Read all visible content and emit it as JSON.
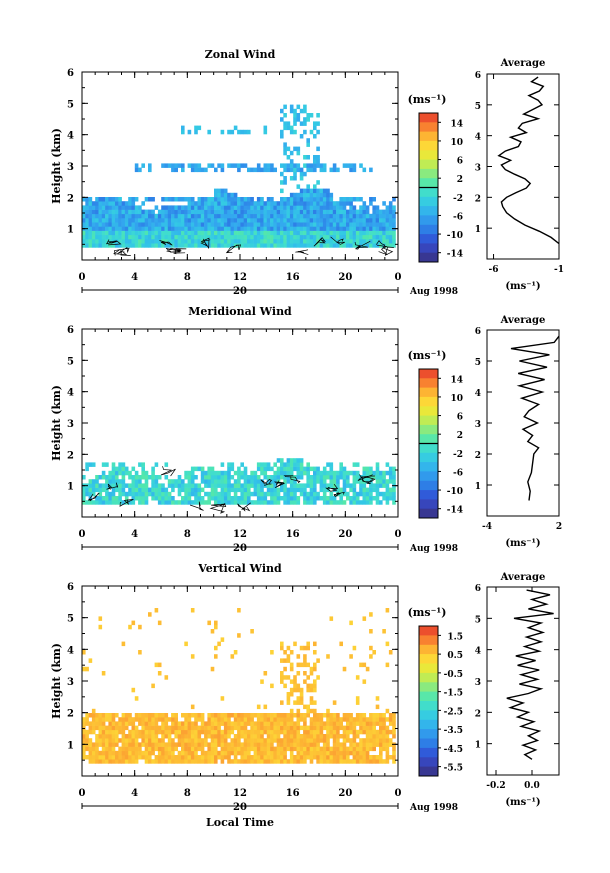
{
  "chart_data": [
    {
      "type": "heatmap",
      "title": "Zonal Wind",
      "xlabel": "",
      "ylabel": "Height (km)",
      "xlim": [
        0,
        24
      ],
      "ylim": [
        0,
        6
      ],
      "x_ticks": [
        "0",
        "4",
        "8",
        "12",
        "16",
        "20",
        "0"
      ],
      "y_ticks": [
        "1",
        "2",
        "3",
        "4",
        "5",
        "6"
      ],
      "date_label": "20",
      "date_suffix": "Aug 1998",
      "colorbar": {
        "unit": "(ms⁻¹)",
        "range": [
          -16,
          16
        ],
        "tick_labels": [
          "14",
          "10",
          "6",
          "2",
          "-2",
          "-6",
          "-10",
          "-14"
        ],
        "zero_line": true
      },
      "data_extent": {
        "height_top_main_km": 1.8,
        "height_top_sparse_km": 5.1
      },
      "value_range_observed": [
        -12,
        0
      ],
      "profile": {
        "title": "Average",
        "xlabel": "(ms⁻¹)",
        "xlim": [
          -6.5,
          -1
        ],
        "x_ticks": [
          "-6",
          "-1"
        ],
        "y_ticks": [
          "1",
          "2",
          "3",
          "4",
          "5",
          "6"
        ],
        "ylim": [
          0,
          6
        ],
        "points": [
          [
            -1.0,
            0.5
          ],
          [
            -1.6,
            0.7
          ],
          [
            -2.5,
            0.9
          ],
          [
            -3.6,
            1.1
          ],
          [
            -4.4,
            1.3
          ],
          [
            -5.0,
            1.5
          ],
          [
            -5.3,
            1.7
          ],
          [
            -5.4,
            1.85
          ],
          [
            -5.0,
            2.0
          ],
          [
            -4.3,
            2.15
          ],
          [
            -3.5,
            2.3
          ],
          [
            -3.2,
            2.45
          ],
          [
            -3.6,
            2.6
          ],
          [
            -4.4,
            2.75
          ],
          [
            -5.1,
            2.9
          ],
          [
            -5.4,
            3.05
          ],
          [
            -4.7,
            3.2
          ],
          [
            -5.6,
            3.35
          ],
          [
            -5.1,
            3.5
          ],
          [
            -4.1,
            3.65
          ],
          [
            -3.9,
            3.8
          ],
          [
            -4.7,
            3.95
          ],
          [
            -3.5,
            4.1
          ],
          [
            -4.1,
            4.25
          ],
          [
            -3.8,
            4.4
          ],
          [
            -2.6,
            4.55
          ],
          [
            -3.7,
            4.7
          ],
          [
            -3.0,
            4.85
          ],
          [
            -2.3,
            5.0
          ],
          [
            -2.6,
            5.15
          ],
          [
            -3.3,
            5.3
          ],
          [
            -2.5,
            5.45
          ],
          [
            -2.2,
            5.6
          ],
          [
            -3.1,
            5.75
          ],
          [
            -2.6,
            5.9
          ]
        ]
      }
    },
    {
      "type": "heatmap",
      "title": "Meridional Wind",
      "xlabel": "",
      "ylabel": "Height (km)",
      "xlim": [
        0,
        24
      ],
      "ylim": [
        0,
        6
      ],
      "x_ticks": [
        "0",
        "4",
        "8",
        "12",
        "16",
        "20",
        "0"
      ],
      "y_ticks": [
        "1",
        "2",
        "3",
        "4",
        "5",
        "6"
      ],
      "date_label": "20",
      "date_suffix": "Aug 1998",
      "colorbar": {
        "unit": "(ms⁻¹)",
        "range": [
          -16,
          16
        ],
        "tick_labels": [
          "14",
          "10",
          "6",
          "2",
          "-2",
          "-6",
          "-10",
          "-14"
        ],
        "zero_line": true
      },
      "data_extent": {
        "height_top_main_km": 1.7
      },
      "value_range_observed": [
        -6,
        2
      ],
      "profile": {
        "title": "Average",
        "xlabel": "(ms⁻¹)",
        "xlim": [
          -4,
          2
        ],
        "x_ticks": [
          "-4",
          "2"
        ],
        "y_ticks": [
          "1",
          "2",
          "3",
          "4",
          "5",
          "6"
        ],
        "ylim": [
          0,
          6
        ],
        "points": [
          [
            -0.5,
            0.5
          ],
          [
            -0.4,
            0.8
          ],
          [
            -0.6,
            1.1
          ],
          [
            -0.3,
            1.4
          ],
          [
            -0.2,
            1.7
          ],
          [
            -0.1,
            2.0
          ],
          [
            0.3,
            2.2
          ],
          [
            -0.6,
            2.4
          ],
          [
            -0.2,
            2.6
          ],
          [
            -1.0,
            2.8
          ],
          [
            0.2,
            3.0
          ],
          [
            -0.9,
            3.2
          ],
          [
            -0.5,
            3.4
          ],
          [
            0.3,
            3.6
          ],
          [
            -1.1,
            3.8
          ],
          [
            0.6,
            4.0
          ],
          [
            -1.3,
            4.2
          ],
          [
            0.8,
            4.4
          ],
          [
            -1.4,
            4.6
          ],
          [
            1.0,
            4.8
          ],
          [
            -1.3,
            5.0
          ],
          [
            1.2,
            5.2
          ],
          [
            -2.0,
            5.4
          ],
          [
            1.6,
            5.6
          ],
          [
            2.0,
            5.8
          ]
        ]
      }
    },
    {
      "type": "heatmap",
      "title": "Vertical Wind",
      "xlabel": "Local Time",
      "ylabel": "Height (km)",
      "xlim": [
        0,
        24
      ],
      "ylim": [
        0,
        6
      ],
      "x_ticks": [
        "0",
        "4",
        "8",
        "12",
        "16",
        "20",
        "0"
      ],
      "y_ticks": [
        "1",
        "2",
        "3",
        "4",
        "5",
        "6"
      ],
      "date_label": "20",
      "date_suffix": "Aug 1998",
      "colorbar": {
        "unit": "(ms⁻¹)",
        "range": [
          -6.5,
          2.0
        ],
        "tick_labels": [
          "1.5",
          "0.5",
          "-0.5",
          "-1.5",
          "-2.5",
          "-3.5",
          "-4.5",
          "-5.5"
        ],
        "zero_line": false
      },
      "data_extent": {
        "height_top_main_km": 2.0,
        "height_top_sparse_km": 5.4
      },
      "value_range_observed": [
        -0.6,
        1.5
      ],
      "profile": {
        "title": "Average",
        "xlabel": "(ms⁻¹)",
        "xlim": [
          -0.25,
          0.15
        ],
        "x_ticks": [
          "-0.2",
          "0.0"
        ],
        "y_ticks": [
          "1",
          "2",
          "3",
          "4",
          "5",
          "6"
        ],
        "ylim": [
          0,
          6
        ],
        "points": [
          [
            0.0,
            0.5
          ],
          [
            -0.04,
            0.65
          ],
          [
            0.02,
            0.8
          ],
          [
            -0.05,
            0.95
          ],
          [
            0.03,
            1.1
          ],
          [
            -0.02,
            1.25
          ],
          [
            0.04,
            1.4
          ],
          [
            -0.06,
            1.55
          ],
          [
            0.01,
            1.7
          ],
          [
            -0.08,
            1.85
          ],
          [
            -0.02,
            2.0
          ],
          [
            -0.12,
            2.15
          ],
          [
            -0.05,
            2.3
          ],
          [
            -0.14,
            2.45
          ],
          [
            -0.02,
            2.6
          ],
          [
            0.05,
            2.75
          ],
          [
            -0.07,
            2.9
          ],
          [
            0.03,
            3.05
          ],
          [
            -0.06,
            3.2
          ],
          [
            0.04,
            3.35
          ],
          [
            -0.08,
            3.5
          ],
          [
            0.02,
            3.65
          ],
          [
            -0.09,
            3.8
          ],
          [
            0.04,
            3.95
          ],
          [
            -0.04,
            4.1
          ],
          [
            0.05,
            4.25
          ],
          [
            -0.03,
            4.4
          ],
          [
            0.06,
            4.55
          ],
          [
            -0.02,
            4.7
          ],
          [
            0.05,
            4.85
          ],
          [
            -0.1,
            5.0
          ],
          [
            0.12,
            5.15
          ],
          [
            -0.02,
            5.3
          ],
          [
            0.08,
            5.45
          ],
          [
            0.0,
            5.6
          ],
          [
            0.1,
            5.75
          ],
          [
            -0.03,
            5.9
          ]
        ]
      }
    }
  ]
}
